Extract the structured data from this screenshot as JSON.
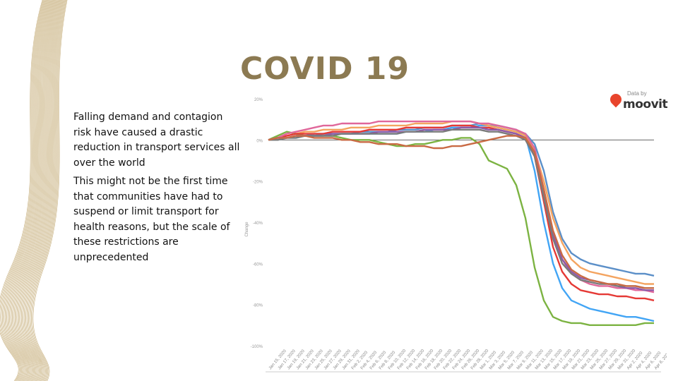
{
  "slide": {
    "title": "COVID 19",
    "paragraphs": [
      "Falling demand and contagion risk have caused a drastic reduction in transport services all over the world",
      "This might not be the first time that communities have had to suspend or limit transport for health reasons, but the scale of these restrictions are unprecedented"
    ]
  },
  "logo": {
    "by": "Data by",
    "word": "moovit"
  },
  "chart_data": {
    "type": "line",
    "title": "",
    "xlabel": "",
    "ylabel": "Change",
    "ylim": [
      -100,
      20
    ],
    "yticks": [
      20,
      0,
      -20,
      -40,
      -60,
      -80,
      -100
    ],
    "ytick_labels": [
      "20%",
      "0%",
      "-20%",
      "-40%",
      "-60%",
      "-80%",
      "-100%"
    ],
    "reference_line": 0,
    "x": [
      "Jan 15, 2020",
      "Jan 17, 2020",
      "Jan 19, 2020",
      "Jan 21, 2020",
      "Jan 23, 2020",
      "Jan 25, 2020",
      "Jan 27, 2020",
      "Jan 29, 2020",
      "Jan 31, 2020",
      "Feb 2, 2020",
      "Feb 4, 2020",
      "Feb 6, 2020",
      "Feb 8, 2020",
      "Feb 10, 2020",
      "Feb 12, 2020",
      "Feb 14, 2020",
      "Feb 16, 2020",
      "Feb 18, 2020",
      "Feb 20, 2020",
      "Feb 22, 2020",
      "Feb 24, 2020",
      "Feb 26, 2020",
      "Feb 28, 2020",
      "Mar 1, 2020",
      "Mar 3, 2020",
      "Mar 5, 2020",
      "Mar 7, 2020",
      "Mar 9, 2020",
      "Mar 11, 2020",
      "Mar 13, 2020",
      "Mar 15, 2020",
      "Mar 17, 2020",
      "Mar 19, 2020",
      "Mar 21, 2020",
      "Mar 23, 2020",
      "Mar 25, 2020",
      "Mar 27, 2020",
      "Mar 29, 2020",
      "Mar 31, 2020",
      "Apr 2, 2020",
      "Apr 4, 2020",
      "Apr 6, 2020",
      "Apr 8, 2020"
    ],
    "series": [
      {
        "name": "green",
        "color": "#7cb342",
        "values": [
          0,
          2,
          4,
          3,
          2,
          2,
          2,
          2,
          1,
          0,
          0,
          0,
          -1,
          -2,
          -3,
          -3,
          -2,
          -2,
          -1,
          0,
          0,
          1,
          1,
          -2,
          -10,
          -12,
          -14,
          -22,
          -38,
          -62,
          -78,
          -86,
          -88,
          -89,
          -89,
          -90,
          -90,
          -90,
          -90,
          -90,
          -90,
          -89,
          -89
        ]
      },
      {
        "name": "lightblue",
        "color": "#42a5f5",
        "values": [
          0,
          1,
          1,
          2,
          2,
          3,
          3,
          3,
          3,
          3,
          3,
          3,
          3,
          3,
          3,
          4,
          4,
          4,
          5,
          5,
          6,
          6,
          6,
          7,
          7,
          7,
          6,
          5,
          2,
          -15,
          -40,
          -60,
          -72,
          -78,
          -80,
          -82,
          -83,
          -84,
          -85,
          -86,
          -86,
          -87,
          -88
        ]
      },
      {
        "name": "steelblue",
        "color": "#5b8fc8",
        "values": [
          0,
          0,
          1,
          1,
          2,
          2,
          3,
          3,
          3,
          3,
          4,
          4,
          4,
          4,
          5,
          5,
          5,
          6,
          6,
          6,
          7,
          7,
          7,
          8,
          7,
          6,
          5,
          4,
          3,
          -2,
          -15,
          -35,
          -48,
          -55,
          -58,
          -60,
          -61,
          -62,
          -63,
          -64,
          -65,
          -65,
          -66
        ]
      },
      {
        "name": "orange",
        "color": "#f4a460",
        "values": [
          0,
          1,
          2,
          3,
          4,
          4,
          5,
          5,
          5,
          6,
          6,
          6,
          7,
          7,
          7,
          7,
          8,
          8,
          8,
          8,
          9,
          9,
          9,
          8,
          7,
          6,
          5,
          4,
          2,
          -5,
          -20,
          -38,
          -50,
          -58,
          -62,
          -64,
          -65,
          -66,
          -67,
          -68,
          -69,
          -70,
          -70
        ]
      },
      {
        "name": "red",
        "color": "#e53935",
        "values": [
          0,
          1,
          2,
          3,
          3,
          3,
          3,
          4,
          4,
          4,
          4,
          5,
          5,
          5,
          5,
          6,
          6,
          6,
          6,
          6,
          7,
          7,
          7,
          6,
          6,
          5,
          4,
          3,
          1,
          -8,
          -30,
          -52,
          -64,
          -70,
          -73,
          -74,
          -75,
          -75,
          -76,
          -76,
          -77,
          -77,
          -78
        ]
      },
      {
        "name": "pink",
        "color": "#e0679a",
        "values": [
          0,
          1,
          3,
          4,
          5,
          6,
          7,
          7,
          8,
          8,
          8,
          8,
          9,
          9,
          9,
          9,
          9,
          9,
          9,
          9,
          9,
          9,
          9,
          8,
          8,
          7,
          6,
          5,
          3,
          -4,
          -24,
          -45,
          -58,
          -65,
          -68,
          -70,
          -71,
          -71,
          -72,
          -72,
          -73,
          -73,
          -74
        ]
      },
      {
        "name": "purple",
        "color": "#8e5aa8",
        "values": [
          0,
          1,
          1,
          2,
          2,
          2,
          2,
          3,
          3,
          3,
          3,
          3,
          4,
          4,
          4,
          4,
          4,
          5,
          5,
          5,
          5,
          6,
          6,
          6,
          5,
          5,
          4,
          3,
          1,
          -6,
          -26,
          -46,
          -58,
          -64,
          -67,
          -68,
          -69,
          -70,
          -71,
          -72,
          -72,
          -73,
          -73
        ]
      },
      {
        "name": "gray",
        "color": "#7a7a7a",
        "values": [
          0,
          0,
          1,
          1,
          2,
          2,
          2,
          2,
          3,
          3,
          3,
          3,
          3,
          3,
          3,
          4,
          4,
          4,
          4,
          4,
          5,
          5,
          5,
          5,
          4,
          4,
          3,
          2,
          0,
          -8,
          -28,
          -48,
          -60,
          -65,
          -68,
          -69,
          -70,
          -70,
          -71,
          -71,
          -71,
          -72,
          -72
        ]
      },
      {
        "name": "brown",
        "color": "#c96a44",
        "values": [
          0,
          1,
          1,
          2,
          2,
          1,
          1,
          1,
          0,
          0,
          -1,
          -1,
          -2,
          -2,
          -2,
          -3,
          -3,
          -3,
          -4,
          -4,
          -3,
          -3,
          -2,
          -1,
          0,
          1,
          2,
          2,
          1,
          -6,
          -24,
          -44,
          -56,
          -63,
          -66,
          -68,
          -69,
          -70,
          -70,
          -71,
          -71,
          -72,
          -72
        ]
      }
    ]
  }
}
